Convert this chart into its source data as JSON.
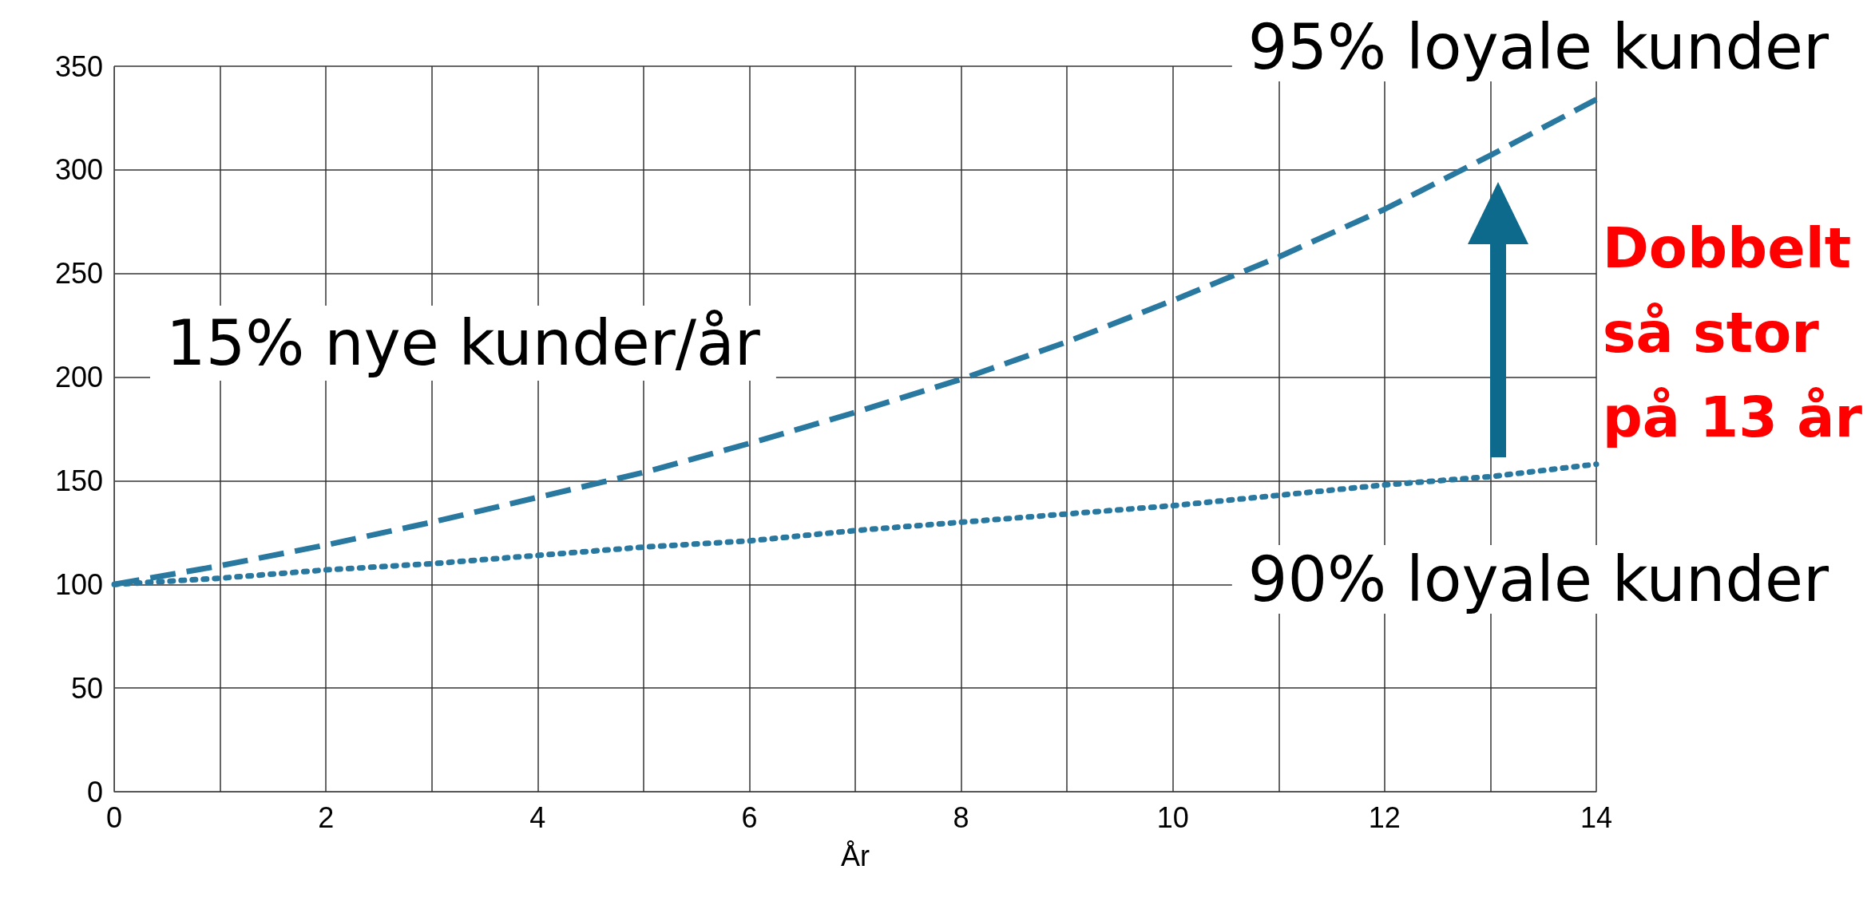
{
  "chart_data": {
    "type": "line",
    "xlabel": "År",
    "x": [
      0,
      1,
      2,
      3,
      4,
      5,
      6,
      7,
      8,
      9,
      10,
      11,
      12,
      13,
      14
    ],
    "series": [
      {
        "name": "95% loyale kunder",
        "color": "#2878a0",
        "line_style": "dashed",
        "values": [
          100,
          109,
          119,
          130,
          142,
          154,
          168,
          183,
          199,
          217,
          237,
          258,
          281,
          307,
          334
        ]
      },
      {
        "name": "90% loyale kunder",
        "color": "#2878a0",
        "line_style": "dotted",
        "values": [
          100,
          103,
          107,
          110,
          114,
          118,
          121,
          126,
          130,
          134,
          138,
          143,
          148,
          152,
          158
        ]
      }
    ],
    "xlim": [
      0,
      14
    ],
    "xticks": [
      0,
      {
        "value": 1,
        "label": null
      },
      2,
      {
        "value": 3,
        "label": null
      },
      4,
      {
        "value": 5,
        "label": null
      },
      6,
      {
        "value": 7,
        "label": null
      },
      8,
      {
        "value": 9,
        "label": null
      },
      10,
      {
        "value": 11,
        "label": null
      },
      12,
      {
        "value": 13,
        "label": null
      },
      14
    ],
    "ylim": [
      0,
      350
    ],
    "yticks": [
      0,
      50,
      100,
      150,
      200,
      250,
      300,
      350
    ],
    "grid": true,
    "marker": "none",
    "annotations": [
      "15% nye kunder/år",
      "Dobbelt så stor på 13 år"
    ]
  }
}
